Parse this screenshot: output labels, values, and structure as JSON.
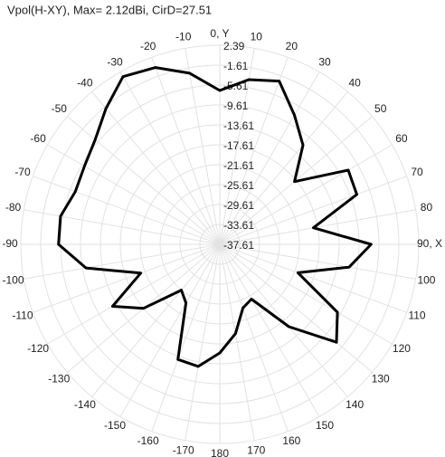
{
  "chart_data": {
    "type": "polar",
    "title": "Vpol(H-XY), Max= 2.12dBi, CirD=27.51",
    "theta": [
      0,
      10,
      20,
      30,
      40,
      50,
      60,
      70,
      80,
      90,
      100,
      110,
      120,
      130,
      140,
      150,
      160,
      170,
      180,
      -170,
      -160,
      -150,
      -140,
      -130,
      -120,
      -110,
      -100,
      -90,
      -80,
      -70,
      -60,
      -50,
      -40,
      -30,
      -20,
      -10
    ],
    "series": [
      {
        "color": "#000000",
        "values": [
          -6.7,
          -4,
          -2.7,
          -7.6,
          -11.6,
          -18,
          -7.8,
          -8.3,
          -18.5,
          -7.2,
          -11.2,
          -20.9,
          -10.3,
          -7,
          -16,
          -24.9,
          -24,
          -19.4,
          -15.8,
          -12.7,
          -13,
          -24,
          -25.6,
          -17.6,
          -12.7,
          -20.7,
          -10.3,
          -5.2,
          -5.1,
          -6.7,
          -6.2,
          -4.9,
          -2,
          1.3,
          0.2,
          -2.7
        ]
      }
    ],
    "rlim": [
      -37.61,
      2.39
    ],
    "rticks": [
      2.39,
      -1.61,
      -5.61,
      -9.61,
      -13.61,
      -17.61,
      -21.61,
      -25.61,
      -29.61,
      -33.61,
      -37.61
    ],
    "thetaticks": [
      {
        "value": 0,
        "label": "0, Y"
      },
      10,
      20,
      30,
      40,
      50,
      60,
      70,
      80,
      {
        "value": 90,
        "label": "90, X"
      },
      100,
      110,
      120,
      130,
      140,
      150,
      160,
      170,
      180,
      -170,
      -160,
      -150,
      -140,
      -130,
      -120,
      -110,
      -100,
      -90,
      -80,
      -70,
      -60,
      -50,
      -40,
      -30,
      -20,
      -10
    ],
    "grid": true
  }
}
